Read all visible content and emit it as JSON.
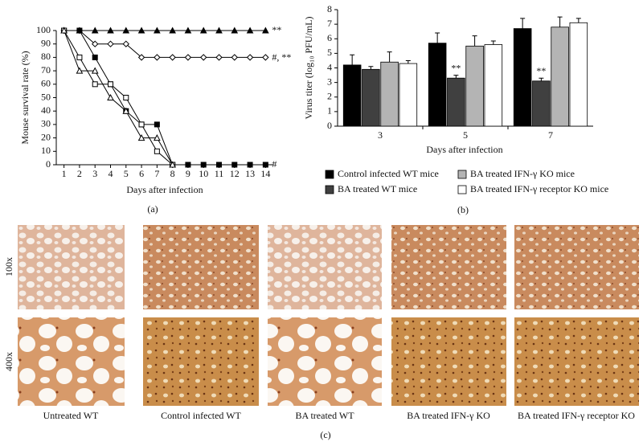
{
  "chart_data": [
    {
      "type": "line",
      "panel": "(a)",
      "xlabel": "Days after infection",
      "ylabel": "Mouse survival rate (%)",
      "x": [
        1,
        2,
        3,
        4,
        5,
        6,
        7,
        8,
        9,
        10,
        11,
        12,
        13,
        14
      ],
      "xlim": [
        0.5,
        14.5
      ],
      "xticks": [
        1,
        2,
        3,
        4,
        5,
        6,
        7,
        8,
        9,
        10,
        11,
        12,
        13,
        14
      ],
      "ylim": [
        0,
        100
      ],
      "yticks": [
        0,
        10,
        20,
        30,
        40,
        50,
        60,
        70,
        80,
        90,
        100
      ],
      "series": [
        {
          "color": "#000000",
          "marker": "triangle-filled",
          "values": [
            100,
            100,
            100,
            100,
            100,
            100,
            100,
            100,
            100,
            100,
            100,
            100,
            100,
            100
          ],
          "annotation": "**"
        },
        {
          "color": "#000000",
          "marker": "diamond-open",
          "values": [
            100,
            100,
            90,
            90,
            90,
            80,
            80,
            80,
            80,
            80,
            80,
            80,
            80,
            80
          ],
          "annotation": "#, **"
        },
        {
          "color": "#000000",
          "marker": "square-filled",
          "values": [
            100,
            100,
            80,
            60,
            40,
            30,
            30,
            0,
            0,
            0,
            0,
            0,
            0,
            0
          ],
          "annotation": "#"
        },
        {
          "color": "#000000",
          "marker": "square-open",
          "values": [
            100,
            80,
            60,
            60,
            50,
            30,
            10,
            0,
            null,
            null,
            null,
            null,
            null,
            null
          ]
        },
        {
          "color": "#000000",
          "marker": "triangle-open",
          "values": [
            100,
            70,
            70,
            50,
            40,
            20,
            20,
            0,
            null,
            null,
            null,
            null,
            null,
            null
          ]
        }
      ]
    },
    {
      "type": "bar",
      "panel": "(b)",
      "xlabel": "Days after infection",
      "ylabel": "Virus titer (log₁₀ PFU/mL)",
      "categories": [
        "3",
        "5",
        "7"
      ],
      "ylim": [
        0,
        8
      ],
      "yticks": [
        0,
        1,
        2,
        3,
        4,
        5,
        6,
        7,
        8
      ],
      "series": [
        {
          "name": "Control infected WT mice",
          "color": "#000000",
          "values": [
            4.2,
            5.7,
            6.7
          ],
          "errors": [
            0.7,
            0.7,
            0.7
          ]
        },
        {
          "name": "BA treated WT mice",
          "color": "#404040",
          "values": [
            3.9,
            3.3,
            3.1
          ],
          "errors": [
            0.2,
            0.2,
            0.2
          ],
          "annotations": [
            null,
            "**",
            "**"
          ]
        },
        {
          "name": "BA treated IFN-γ KO mice",
          "color": "#b4b4b4",
          "values": [
            4.4,
            5.5,
            6.8
          ],
          "errors": [
            0.7,
            0.7,
            0.7
          ]
        },
        {
          "name": "BA treated IFN-γ receptor KO mice",
          "color": "#ffffff",
          "values": [
            4.3,
            5.6,
            7.1
          ],
          "errors": [
            0.2,
            0.25,
            0.3
          ]
        }
      ]
    }
  ],
  "micrographs": {
    "panel": "(c)",
    "rows": [
      "100x",
      "400x"
    ],
    "columns": [
      "Untreated WT",
      "Control infected WT",
      "BA treated WT",
      "BA treated IFN-γ KO",
      "BA treated IFN-γ receptor KO"
    ]
  }
}
